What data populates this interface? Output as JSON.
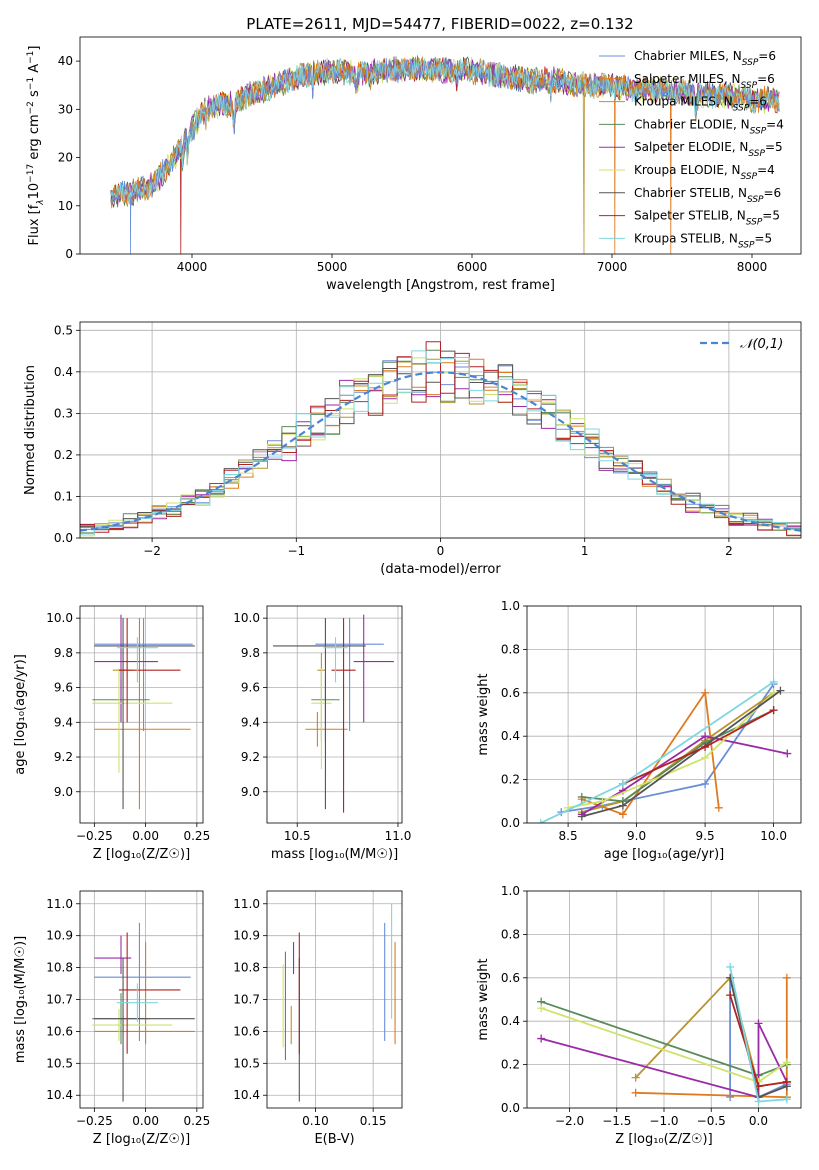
{
  "figure": {
    "title": "PLATE=2611, MJD=54477, FIBERID=0022, z=0.132"
  },
  "colors": [
    "#6a8ed8",
    "#e07a1f",
    "#b8932f",
    "#5a8a5a",
    "#9b2aa8",
    "#cfe36b",
    "#555555",
    "#b22222",
    "#7fd6e0"
  ],
  "chart_data": [
    {
      "id": "spectrum",
      "type": "line",
      "xlabel": "wavelength [Angstrom, rest frame]",
      "ylabel": "Flux [f_λ10⁻¹⁷ erg cm⁻² s⁻¹ A⁻¹]",
      "xlim": [
        3200,
        8350
      ],
      "ylim": [
        0,
        45
      ],
      "xticks": [
        4000,
        5000,
        6000,
        7000,
        8000
      ],
      "yticks": [
        0,
        10,
        20,
        30,
        40
      ],
      "grid": false,
      "legend_position": "top-right",
      "continuum": {
        "x": [
          3400,
          3500,
          3600,
          3700,
          3800,
          3900,
          4000,
          4100,
          4200,
          4300,
          4400,
          4600,
          4800,
          5000,
          5200,
          5400,
          5600,
          5800,
          6000,
          6200,
          6400,
          6600,
          6800,
          7000,
          7200,
          7400,
          7600,
          7800,
          8000,
          8200
        ],
        "y": [
          12,
          12.5,
          13,
          14,
          17,
          21,
          26,
          30,
          31,
          31,
          33,
          35,
          37,
          38,
          37.5,
          38,
          38.5,
          38,
          38,
          37,
          36,
          36,
          35,
          35,
          34,
          34,
          33,
          33,
          32,
          32
        ]
      },
      "series": [
        {
          "name": "Chabrier MILES, N_SSP=6",
          "label_main": "Chabrier MILES, N",
          "label_sub": "SSP",
          "label_tail": "=6"
        },
        {
          "name": "Salpeter MILES, N_SSP=6",
          "label_main": "Salpeter MILES, N",
          "label_sub": "SSP",
          "label_tail": "=6"
        },
        {
          "name": "Kroupa MILES, N_SSP=6",
          "label_main": "Kroupa MILES, N",
          "label_sub": "SSP",
          "label_tail": "=6"
        },
        {
          "name": "Chabrier ELODIE, N_SSP=4",
          "label_main": "Chabrier ELODIE, N",
          "label_sub": "SSP",
          "label_tail": "=4"
        },
        {
          "name": "Salpeter ELODIE, N_SSP=5",
          "label_main": "Salpeter ELODIE, N",
          "label_sub": "SSP",
          "label_tail": "=5"
        },
        {
          "name": "Kroupa ELODIE, N_SSP=4",
          "label_main": "Kroupa ELODIE, N",
          "label_sub": "SSP",
          "label_tail": "=4"
        },
        {
          "name": "Chabrier STELIB, N_SSP=6",
          "label_main": "Chabrier STELIB, N",
          "label_sub": "SSP",
          "label_tail": "=6"
        },
        {
          "name": "Salpeter STELIB, N_SSP=5",
          "label_main": "Salpeter STELIB, N",
          "label_sub": "SSP",
          "label_tail": "=5"
        },
        {
          "name": "Kroupa STELIB, N_SSP=5",
          "label_main": "Kroupa STELIB, N",
          "label_sub": "SSP",
          "label_tail": "=5"
        }
      ]
    },
    {
      "id": "residuals",
      "type": "histogram",
      "xlabel": "(data-model)/error",
      "ylabel": "Normed distribution",
      "xlim": [
        -2.5,
        2.5
      ],
      "ylim": [
        0,
        0.52
      ],
      "xticks": [
        -2,
        -1,
        0,
        1,
        2
      ],
      "yticks": [
        0.0,
        0.1,
        0.2,
        0.3,
        0.4,
        0.5
      ],
      "grid": true,
      "legend_position": "top-right",
      "reference_curve": {
        "label": "𝒩(0,1)",
        "mean": 0,
        "sigma": 1
      },
      "bin_width": 0.1,
      "series_counts": 9
    },
    {
      "id": "age_vs_Z",
      "type": "errorbar",
      "xlabel": "Z [log₁₀(Z/Z☉)]",
      "ylabel": "age  [log₁₀(age/yr)]",
      "xlim": [
        -0.32,
        0.28
      ],
      "ylim": [
        8.82,
        10.07
      ],
      "xticks": [
        -0.25,
        0.0,
        0.25
      ],
      "yticks": [
        9.0,
        9.2,
        9.4,
        9.6,
        9.8,
        10.0
      ],
      "grid": true,
      "points": [
        {
          "x": -0.01,
          "xerr": [
            0.24,
            0.24
          ],
          "y": 9.85,
          "yerr": [
            0.5,
            0.15
          ]
        },
        {
          "x": -0.03,
          "xerr": [
            0.22,
            0.25
          ],
          "y": 9.36,
          "yerr": [
            0.46,
            0.64
          ]
        },
        {
          "x": -0.11,
          "xerr": [
            0.05,
            0.05
          ],
          "y": 9.7,
          "yerr": [
            0.1,
            0.1
          ]
        },
        {
          "x": -0.12,
          "xerr": [
            0.14,
            0.14
          ],
          "y": 9.53,
          "yerr": [
            0.12,
            0.12
          ]
        },
        {
          "x": -0.12,
          "xerr": [
            0.13,
            0.18
          ],
          "y": 9.75,
          "yerr": [
            0.35,
            0.27
          ]
        },
        {
          "x": -0.13,
          "xerr": [
            0.13,
            0.26
          ],
          "y": 9.51,
          "yerr": [
            0.4,
            0.2
          ]
        },
        {
          "x": -0.11,
          "xerr": [
            0.14,
            0.35
          ],
          "y": 9.84,
          "yerr": [
            0.94,
            0.16
          ]
        },
        {
          "x": -0.09,
          "xerr": [
            0.04,
            0.26
          ],
          "y": 9.7,
          "yerr": [
            0.3,
            0.3
          ]
        },
        {
          "x": -0.04,
          "xerr": [
            0.1,
            0.1
          ],
          "y": 9.83,
          "yerr": [
            0.2,
            0.06
          ]
        }
      ]
    },
    {
      "id": "age_vs_mass",
      "type": "errorbar",
      "xlabel": "mass [log₁₀(M/M☉)]",
      "ylabel": "",
      "xlim": [
        10.35,
        11.02
      ],
      "ylim": [
        8.82,
        10.07
      ],
      "xticks": [
        10.5,
        11.0
      ],
      "yticks": [
        9.0,
        9.2,
        9.4,
        9.6,
        9.8,
        10.0
      ],
      "grid": true,
      "points": [
        {
          "x": 10.76,
          "xerr": [
            0.17,
            0.17
          ],
          "y": 9.85,
          "yerr": [
            0.5,
            0.15
          ]
        },
        {
          "x": 10.6,
          "xerr": [
            0.06,
            0.15
          ],
          "y": 9.36,
          "yerr": [
            0.1,
            0.1
          ]
        },
        {
          "x": 10.62,
          "xerr": [
            0.02,
            0.02
          ],
          "y": 9.7,
          "yerr": [
            0.41,
            0.1
          ]
        },
        {
          "x": 10.64,
          "xerr": [
            0.07,
            0.07
          ],
          "y": 9.53,
          "yerr": [
            0.24,
            0.12
          ]
        },
        {
          "x": 10.83,
          "xerr": [
            0.05,
            0.15
          ],
          "y": 9.75,
          "yerr": [
            0.35,
            0.27
          ]
        },
        {
          "x": 10.62,
          "xerr": [
            0.05,
            0.05
          ],
          "y": 9.51,
          "yerr": [
            0.38,
            0.2
          ]
        },
        {
          "x": 10.64,
          "xerr": [
            0.26,
            0.2
          ],
          "y": 9.84,
          "yerr": [
            0.94,
            0.16
          ]
        },
        {
          "x": 10.73,
          "xerr": [
            0.06,
            0.06
          ],
          "y": 9.7,
          "yerr": [
            0.82,
            0.3
          ]
        },
        {
          "x": 10.69,
          "xerr": [
            0.06,
            0.06
          ],
          "y": 9.83,
          "yerr": [
            0.2,
            0.06
          ]
        }
      ]
    },
    {
      "id": "massweight_vs_age",
      "type": "line",
      "xlabel": "age  [log₁₀(age/yr)]",
      "ylabel": "mass weight",
      "xlim": [
        8.2,
        10.2
      ],
      "ylim": [
        0,
        1
      ],
      "xticks": [
        8.5,
        9.0,
        9.5,
        10.0
      ],
      "yticks": [
        0.0,
        0.2,
        0.4,
        0.6,
        0.8,
        1.0
      ],
      "grid": true,
      "series": [
        {
          "x": [
            8.45,
            8.75,
            8.9,
            9.5,
            10.0
          ],
          "y": [
            0.05,
            0.08,
            0.1,
            0.18,
            0.64
          ]
        },
        {
          "x": [
            8.6,
            8.9,
            9.5,
            9.6
          ],
          "y": [
            0.11,
            0.04,
            0.6,
            0.07
          ]
        },
        {
          "x": [
            8.6,
            8.9,
            9.5,
            10.0
          ],
          "y": [
            0.05,
            0.1,
            0.38,
            0.6
          ]
        },
        {
          "x": [
            8.6,
            8.9,
            9.5,
            10.0
          ],
          "y": [
            0.12,
            0.1,
            0.37,
            0.52
          ]
        },
        {
          "x": [
            8.6,
            8.9,
            9.5,
            10.1
          ],
          "y": [
            0.04,
            0.15,
            0.4,
            0.32
          ]
        },
        {
          "x": [
            8.5,
            8.75,
            9.5,
            10.0
          ],
          "y": [
            0.07,
            0.1,
            0.3,
            0.6
          ]
        },
        {
          "x": [
            8.6,
            8.9,
            10.05
          ],
          "y": [
            0.03,
            0.08,
            0.61
          ]
        },
        {
          "x": [
            8.9,
            9.5,
            10.0
          ],
          "y": [
            0.18,
            0.35,
            0.52
          ]
        },
        {
          "x": [
            8.3,
            8.9,
            10.0
          ],
          "y": [
            0.0,
            0.18,
            0.65
          ]
        }
      ]
    },
    {
      "id": "mass_vs_Z",
      "type": "errorbar",
      "xlabel": "Z [log₁₀(Z/Z☉)]",
      "ylabel": "mass [log₁₀(M/M☉)]",
      "xlim": [
        -0.32,
        0.28
      ],
      "ylim": [
        10.36,
        11.04
      ],
      "xticks": [
        -0.25,
        0.0,
        0.25
      ],
      "yticks": [
        10.4,
        10.5,
        10.6,
        10.7,
        10.8,
        10.9,
        11.0
      ],
      "grid": true,
      "points": [
        {
          "x": -0.03,
          "xerr": [
            0.22,
            0.25
          ],
          "y": 10.77,
          "yerr": [
            0.2,
            0.17
          ]
        },
        {
          "x": 0.0,
          "xerr": [
            0.25,
            0.24
          ],
          "y": 10.6,
          "yerr": [
            0.04,
            0.28
          ]
        },
        {
          "x": -0.11,
          "xerr": [
            0.03,
            0.03
          ],
          "y": 10.62,
          "yerr": [
            0.03,
            0.03
          ]
        },
        {
          "x": -0.12,
          "xerr": [
            0.14,
            0.14
          ],
          "y": 10.64,
          "yerr": [
            0.08,
            0.08
          ]
        },
        {
          "x": -0.12,
          "xerr": [
            0.13,
            0.05
          ],
          "y": 10.83,
          "yerr": [
            0.05,
            0.07
          ]
        },
        {
          "x": -0.13,
          "xerr": [
            0.13,
            0.26
          ],
          "y": 10.62,
          "yerr": [
            0.05,
            0.05
          ]
        },
        {
          "x": -0.11,
          "xerr": [
            0.14,
            0.35
          ],
          "y": 10.64,
          "yerr": [
            0.26,
            0.19
          ]
        },
        {
          "x": -0.09,
          "xerr": [
            0.04,
            0.26
          ],
          "y": 10.73,
          "yerr": [
            0.2,
            0.18
          ]
        },
        {
          "x": -0.04,
          "xerr": [
            0.1,
            0.1
          ],
          "y": 10.69,
          "yerr": [
            0.06,
            0.06
          ]
        }
      ]
    },
    {
      "id": "mass_vs_ebv",
      "type": "errorbar",
      "xlabel": "E(B-V)",
      "ylabel": "",
      "xlim": [
        0.058,
        0.175
      ],
      "ylim": [
        10.36,
        11.04
      ],
      "xticks": [
        0.1,
        0.15
      ],
      "yticks": [
        10.4,
        10.5,
        10.6,
        10.7,
        10.8,
        10.9,
        11.0
      ],
      "grid": true,
      "points": [
        {
          "x": 0.16,
          "y": 10.77,
          "yerr": [
            0.2,
            0.17
          ]
        },
        {
          "x": 0.169,
          "y": 10.72,
          "yerr": [
            0.16,
            0.16
          ]
        },
        {
          "x": 0.079,
          "y": 10.62,
          "yerr": [
            0.06,
            0.06
          ]
        },
        {
          "x": 0.074,
          "y": 10.67,
          "yerr": [
            0.16,
            0.18
          ]
        },
        {
          "x": 0.081,
          "y": 10.83,
          "yerr": [
            0.05,
            0.05
          ]
        },
        {
          "x": 0.072,
          "y": 10.68,
          "yerr": [
            0.13,
            0.13
          ]
        },
        {
          "x": 0.086,
          "y": 10.64,
          "yerr": [
            0.26,
            0.19
          ]
        },
        {
          "x": 0.086,
          "y": 10.73,
          "yerr": [
            0.2,
            0.18
          ]
        },
        {
          "x": 0.166,
          "y": 10.82,
          "yerr": [
            0.18,
            0.18
          ]
        }
      ]
    },
    {
      "id": "massweight_vs_Z",
      "type": "line",
      "xlabel": "Z [log₁₀(Z/Z☉)]",
      "ylabel": "mass weight",
      "xlim": [
        -2.45,
        0.45
      ],
      "ylim": [
        0,
        1
      ],
      "xticks": [
        -2.0,
        -1.5,
        -1.0,
        -0.5,
        0.0
      ],
      "yticks": [
        0.0,
        0.2,
        0.4,
        0.6,
        0.8,
        1.0
      ],
      "grid": true,
      "series": [
        {
          "x": [
            -0.3,
            -0.3,
            0.0,
            0.3
          ],
          "y": [
            0.05,
            0.6,
            0.05,
            0.11
          ]
        },
        {
          "x": [
            -1.3,
            0.3,
            0.3,
            0.3
          ],
          "y": [
            0.07,
            0.05,
            0.6,
            0.05
          ]
        },
        {
          "x": [
            -1.3,
            -0.3,
            0.0,
            0.3
          ],
          "y": [
            0.14,
            0.6,
            0.1,
            0.12
          ]
        },
        {
          "x": [
            -2.3,
            0.0,
            0.3
          ],
          "y": [
            0.49,
            0.15,
            0.2
          ]
        },
        {
          "x": [
            -2.3,
            0.0,
            0.0,
            0.3
          ],
          "y": [
            0.32,
            0.05,
            0.39,
            0.12
          ]
        },
        {
          "x": [
            -2.3,
            0.0,
            0.3
          ],
          "y": [
            0.46,
            0.12,
            0.21
          ]
        },
        {
          "x": [
            -0.3,
            0.0,
            0.3
          ],
          "y": [
            0.6,
            0.05,
            0.1
          ]
        },
        {
          "x": [
            -0.3,
            0.0,
            0.3
          ],
          "y": [
            0.52,
            0.1,
            0.12
          ]
        },
        {
          "x": [
            -0.3,
            0.0,
            0.3
          ],
          "y": [
            0.65,
            0.03,
            0.04
          ]
        }
      ]
    }
  ]
}
